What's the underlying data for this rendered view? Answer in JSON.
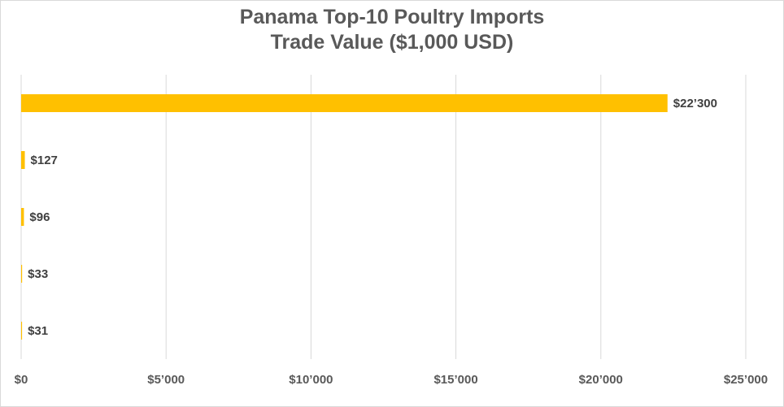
{
  "chart_data": {
    "type": "bar",
    "orientation": "horizontal",
    "title": "Panama Top-10 Poultry Imports",
    "subtitle": "Trade Value ($1,000 USD)",
    "categories": [
      "",
      "",
      "",
      "",
      ""
    ],
    "values": [
      22300,
      127,
      96,
      33,
      31
    ],
    "data_labels": [
      "$22’300",
      "$127",
      "$96",
      "$33",
      "$31"
    ],
    "xlim": [
      0,
      25000
    ],
    "x_ticks": [
      0,
      5000,
      10000,
      15000,
      20000,
      25000
    ],
    "x_tick_labels": [
      "$0",
      "$5’000",
      "$10’000",
      "$15’000",
      "$20’000",
      "$25’000"
    ],
    "grid": true,
    "legend": "none",
    "bar_color": "#ffc000",
    "grid_color": "#d9d9d9",
    "text_color": "#595959"
  }
}
